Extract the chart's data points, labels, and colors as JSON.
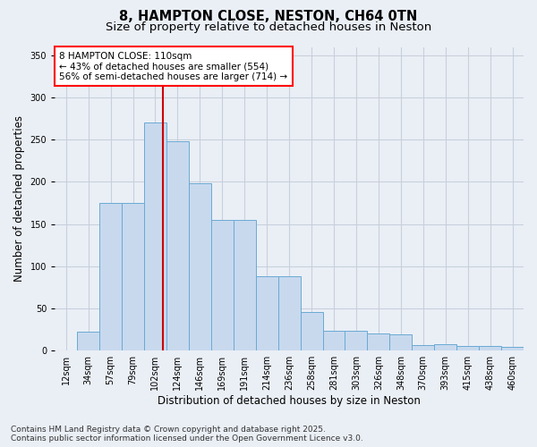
{
  "title1": "8, HAMPTON CLOSE, NESTON, CH64 0TN",
  "title2": "Size of property relative to detached houses in Neston",
  "xlabel": "Distribution of detached houses by size in Neston",
  "ylabel": "Number of detached properties",
  "categories": [
    "12sqm",
    "34sqm",
    "57sqm",
    "79sqm",
    "102sqm",
    "124sqm",
    "146sqm",
    "169sqm",
    "191sqm",
    "214sqm",
    "236sqm",
    "258sqm",
    "281sqm",
    "303sqm",
    "326sqm",
    "348sqm",
    "370sqm",
    "393sqm",
    "415sqm",
    "438sqm",
    "460sqm"
  ],
  "bar_values": [
    0,
    22,
    175,
    175,
    270,
    248,
    198,
    155,
    155,
    88,
    88,
    46,
    24,
    24,
    20,
    19,
    7,
    8,
    5,
    5,
    4
  ],
  "bar_color": "#c8d9ee",
  "bar_edge_color": "#6aaad4",
  "ref_line_x": 4.36,
  "ref_line_label": "8 HAMPTON CLOSE: 110sqm",
  "annotation_line1": "← 43% of detached houses are smaller (554)",
  "annotation_line2": "56% of semi-detached houses are larger (714) →",
  "ref_line_color": "#cc0000",
  "ylim": [
    0,
    360
  ],
  "yticks": [
    0,
    50,
    100,
    150,
    200,
    250,
    300,
    350
  ],
  "grid_color": "#c8d0dc",
  "bg_color": "#eaeff6",
  "footer1": "Contains HM Land Registry data © Crown copyright and database right 2025.",
  "footer2": "Contains public sector information licensed under the Open Government Licence v3.0.",
  "title_fontsize": 10.5,
  "subtitle_fontsize": 9.5,
  "axis_label_fontsize": 8.5,
  "tick_fontsize": 7,
  "annotation_fontsize": 7.5,
  "footer_fontsize": 6.5
}
